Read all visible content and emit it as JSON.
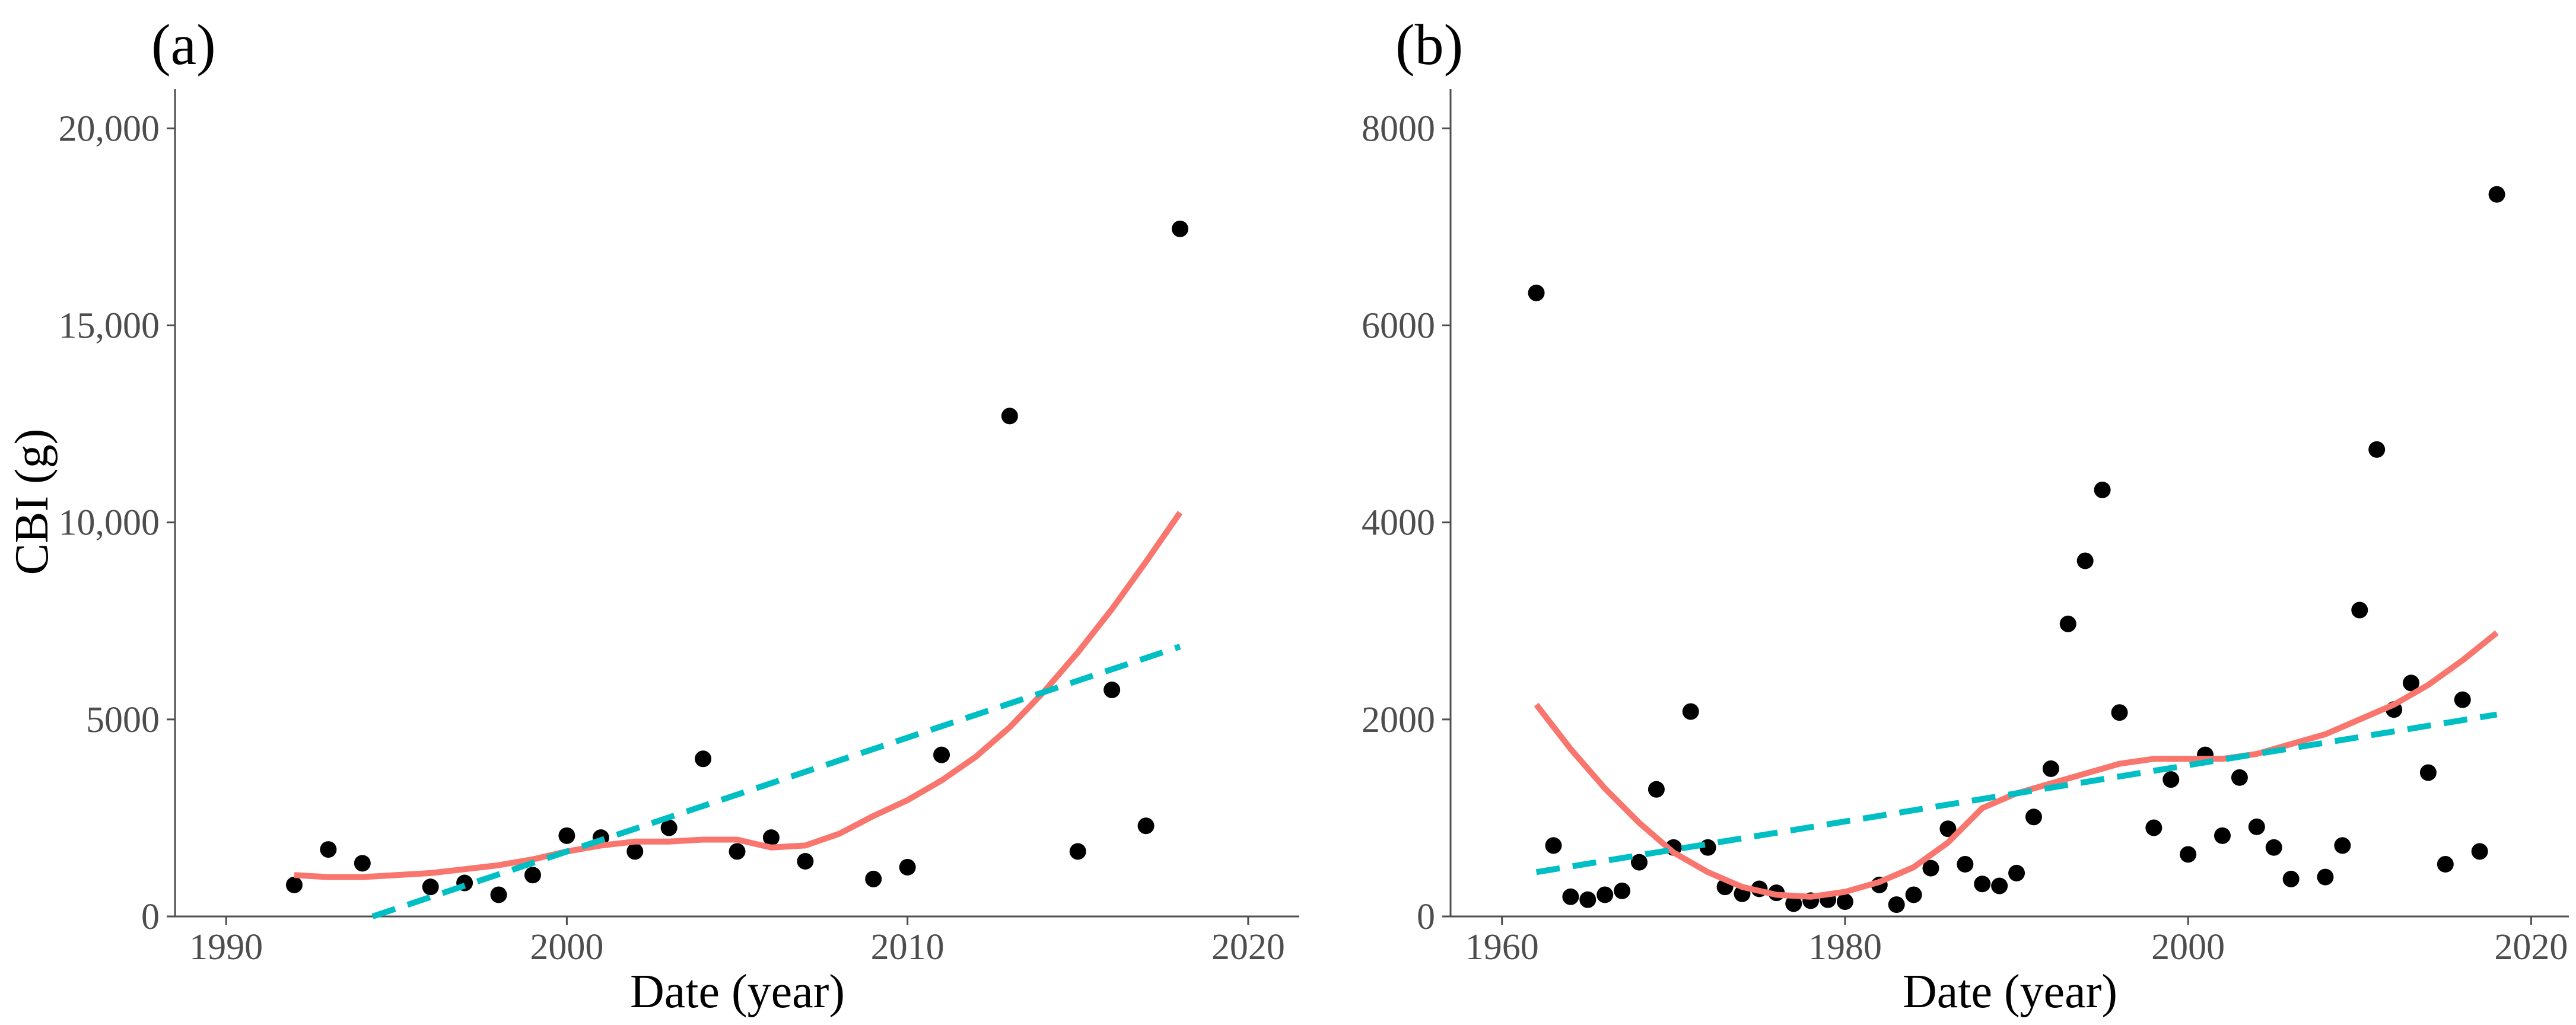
{
  "figure": {
    "panel_a_label": "(a)",
    "panel_b_label": "(b)"
  },
  "colors": {
    "loess": "#F8766D",
    "linear": "#00BFC4",
    "points": "#000000",
    "axis": "#4d4d4d"
  },
  "chart_data": [
    {
      "type": "scatter",
      "panel": "(a)",
      "title": "",
      "xlabel": "Date (year)",
      "ylabel": "CBI (g)",
      "xlim": [
        1988.5,
        2021.5
      ],
      "ylim": [
        0,
        21000
      ],
      "grid": false,
      "x_ticks": [
        1990,
        2000,
        2010,
        2020
      ],
      "x_tick_labels": [
        "1990",
        "2000",
        "2010",
        "2020"
      ],
      "y_ticks": [
        0,
        5000,
        10000,
        15000,
        20000
      ],
      "y_tick_labels": [
        "0",
        "5000",
        "10,000",
        "15,000",
        "20,000"
      ],
      "points": [
        [
          1992,
          800
        ],
        [
          1993,
          1700
        ],
        [
          1994,
          1350
        ],
        [
          1996,
          750
        ],
        [
          1997,
          850
        ],
        [
          1998,
          550
        ],
        [
          1999,
          1050
        ],
        [
          2000,
          2050
        ],
        [
          2001,
          2000
        ],
        [
          2002,
          1650
        ],
        [
          2003,
          2250
        ],
        [
          2004,
          4000
        ],
        [
          2005,
          1650
        ],
        [
          2006,
          2000
        ],
        [
          2007,
          1400
        ],
        [
          2009,
          950
        ],
        [
          2010,
          1250
        ],
        [
          2011,
          4100
        ],
        [
          2013,
          12700
        ],
        [
          2015,
          1650
        ],
        [
          2016,
          5750
        ],
        [
          2017,
          2300
        ],
        [
          2018,
          17450
        ]
      ],
      "series": [
        {
          "name": "loess",
          "style": "solid",
          "x": [
            1992,
            1993,
            1994,
            1995,
            1996,
            1997,
            1998,
            1999,
            2000,
            2001,
            2002,
            2003,
            2004,
            2005,
            2006,
            2007,
            2008,
            2009,
            2010,
            2011,
            2012,
            2013,
            2014,
            2015,
            2016,
            2017,
            2018
          ],
          "y": [
            1050,
            1000,
            1000,
            1050,
            1100,
            1200,
            1300,
            1450,
            1650,
            1800,
            1900,
            1900,
            1950,
            1950,
            1750,
            1800,
            2100,
            2550,
            2950,
            3450,
            4050,
            4800,
            5700,
            6700,
            7800,
            9000,
            10250
          ]
        },
        {
          "name": "linear",
          "style": "dashed",
          "x": [
            1994.3,
            2018
          ],
          "y": [
            0,
            6850
          ]
        }
      ]
    },
    {
      "type": "scatter",
      "panel": "(b)",
      "title": "",
      "xlabel": "Date (year)",
      "ylabel": "",
      "xlim": [
        1957,
        2022.2
      ],
      "ylim": [
        0,
        8400
      ],
      "grid": false,
      "x_ticks": [
        1960,
        1980,
        2000,
        2020
      ],
      "x_tick_labels": [
        "1960",
        "1980",
        "2000",
        "2020"
      ],
      "y_ticks": [
        0,
        2000,
        4000,
        6000,
        8000
      ],
      "y_tick_labels": [
        "0",
        "2000",
        "4000",
        "6000",
        "8000"
      ],
      "points": [
        [
          1962,
          6330
        ],
        [
          1963,
          720
        ],
        [
          1964,
          200
        ],
        [
          1965,
          170
        ],
        [
          1966,
          220
        ],
        [
          1967,
          260
        ],
        [
          1968,
          550
        ],
        [
          1969,
          1290
        ],
        [
          1970,
          700
        ],
        [
          1971,
          2080
        ],
        [
          1972,
          700
        ],
        [
          1973,
          300
        ],
        [
          1974,
          230
        ],
        [
          1975,
          280
        ],
        [
          1976,
          240
        ],
        [
          1977,
          130
        ],
        [
          1978,
          160
        ],
        [
          1979,
          170
        ],
        [
          1980,
          150
        ],
        [
          1982,
          320
        ],
        [
          1983,
          120
        ],
        [
          1984,
          220
        ],
        [
          1985,
          490
        ],
        [
          1986,
          890
        ],
        [
          1987,
          530
        ],
        [
          1988,
          330
        ],
        [
          1989,
          310
        ],
        [
          1990,
          440
        ],
        [
          1991,
          1010
        ],
        [
          1992,
          1500
        ],
        [
          1993,
          2970
        ],
        [
          1994,
          3610
        ],
        [
          1995,
          4330
        ],
        [
          1996,
          2070
        ],
        [
          1998,
          900
        ],
        [
          1999,
          1390
        ],
        [
          2000,
          630
        ],
        [
          2001,
          1640
        ],
        [
          2002,
          820
        ],
        [
          2003,
          1410
        ],
        [
          2004,
          910
        ],
        [
          2005,
          700
        ],
        [
          2006,
          380
        ],
        [
          2008,
          400
        ],
        [
          2009,
          720
        ],
        [
          2010,
          3110
        ],
        [
          2011,
          4740
        ],
        [
          2012,
          2100
        ],
        [
          2013,
          2370
        ],
        [
          2014,
          1460
        ],
        [
          2015,
          530
        ],
        [
          2016,
          2200
        ],
        [
          2017,
          660
        ],
        [
          2018,
          7330
        ]
      ],
      "series": [
        {
          "name": "loess",
          "style": "solid",
          "x": [
            1962,
            1964,
            1966,
            1968,
            1970,
            1972,
            1974,
            1976,
            1978,
            1980,
            1982,
            1984,
            1986,
            1988,
            1990,
            1992,
            1994,
            1996,
            1998,
            2000,
            2002,
            2004,
            2006,
            2008,
            2010,
            2012,
            2014,
            2016,
            2018
          ],
          "y": [
            2150,
            1700,
            1300,
            950,
            650,
            450,
            300,
            220,
            200,
            250,
            350,
            500,
            750,
            1100,
            1250,
            1350,
            1450,
            1550,
            1600,
            1600,
            1600,
            1650,
            1750,
            1850,
            2000,
            2150,
            2350,
            2600,
            2880
          ]
        },
        {
          "name": "linear",
          "style": "dashed",
          "x": [
            1962,
            2018
          ],
          "y": [
            450,
            2050
          ]
        }
      ]
    }
  ]
}
